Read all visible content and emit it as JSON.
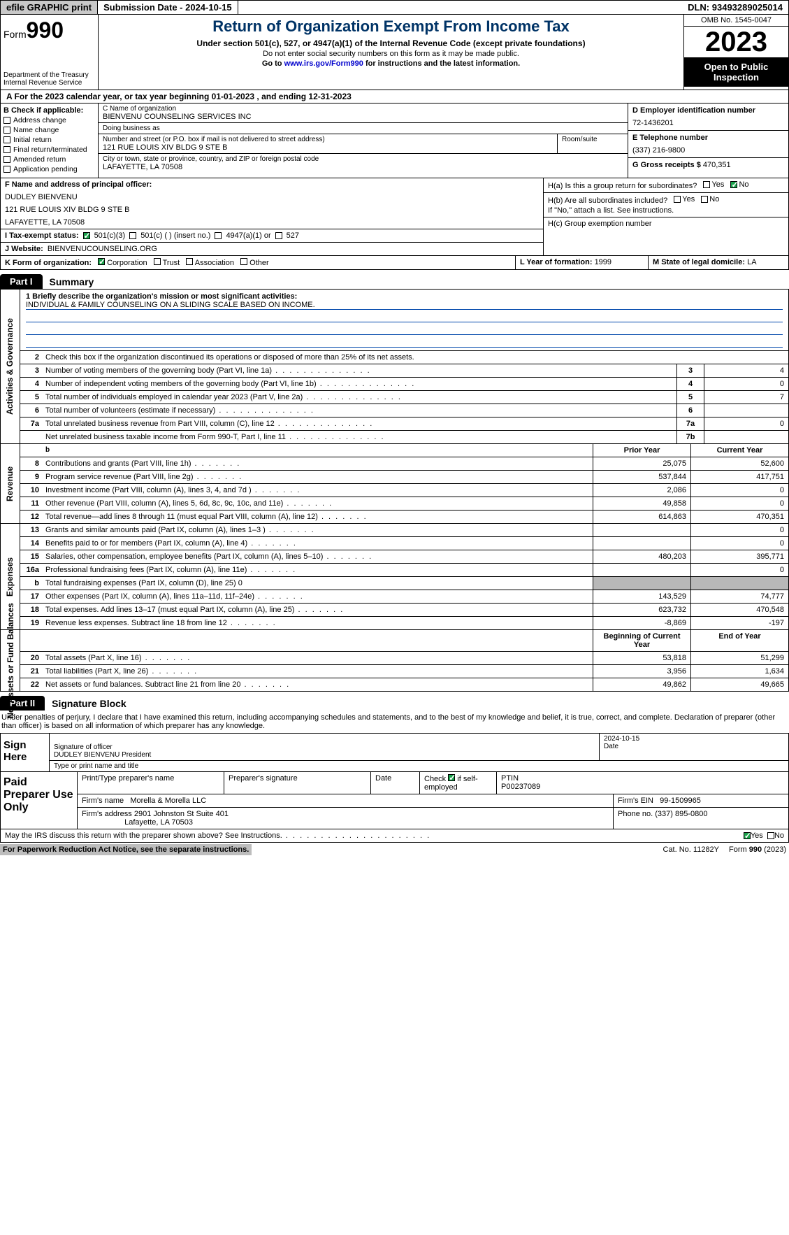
{
  "topbar": {
    "efile": "efile GRAPHIC print",
    "sub_label": "Submission Date - ",
    "sub_date": "2024-10-15",
    "dln_label": "DLN: ",
    "dln": "93493289025014"
  },
  "header": {
    "form_word": "Form",
    "form_num": "990",
    "title": "Return of Organization Exempt From Income Tax",
    "sub": "Under section 501(c), 527, or 4947(a)(1) of the Internal Revenue Code (except private foundations)",
    "ssn": "Do not enter social security numbers on this form as it may be made public.",
    "goto_pre": "Go to ",
    "goto_link": "www.irs.gov/Form990",
    "goto_post": " for instructions and the latest information.",
    "dept": "Department of the Treasury",
    "irs": "Internal Revenue Service",
    "omb": "OMB No. 1545-0047",
    "year": "2023",
    "inspection": "Open to Public Inspection"
  },
  "a_line": {
    "pre": "A For the 2023 calendar year, or tax year beginning ",
    "begin": "01-01-2023",
    "mid": "   , and ending ",
    "end": "12-31-2023"
  },
  "boxB": {
    "hdr": "B Check if applicable:",
    "items": [
      "Address change",
      "Name change",
      "Initial return",
      "Final return/terminated",
      "Amended return",
      "Application pending"
    ]
  },
  "boxC": {
    "name_lbl": "C Name of organization",
    "name": "BIENVENU COUNSELING SERVICES INC",
    "dba_lbl": "Doing business as",
    "dba": "",
    "street_lbl": "Number and street (or P.O. box if mail is not delivered to street address)",
    "street": "121 RUE LOUIS XIV BLDG 9 STE B",
    "room_lbl": "Room/suite",
    "city_lbl": "City or town, state or province, country, and ZIP or foreign postal code",
    "city": "LAFAYETTE, LA   70508"
  },
  "boxD": {
    "ein_lbl": "D Employer identification number",
    "ein": "72-1436201",
    "phone_lbl": "E Telephone number",
    "phone": "(337) 216-9800",
    "gross_lbl": "G Gross receipts $ ",
    "gross": "470,351"
  },
  "boxF": {
    "lbl": "F  Name and address of principal officer:",
    "name": "DUDLEY BIENVENU",
    "street": "121 RUE LOUIS XIV BLDG 9 STE B",
    "city": "LAFAYETTE, LA  70508"
  },
  "boxH": {
    "a_lbl": "H(a)  Is this a group return for subordinates?",
    "b_lbl": "H(b)  Are all subordinates included?",
    "b_note": "If \"No,\" attach a list. See instructions.",
    "c_lbl": "H(c)  Group exemption number"
  },
  "boxI": {
    "lbl": "I   Tax-exempt status:",
    "c3": "501(c)(3)",
    "c": "501(c) (  ) (insert no.)",
    "a1": "4947(a)(1) or",
    "s527": "527"
  },
  "boxJ": {
    "lbl": "J   Website:",
    "val": " BIENVENUCOUNSELING.ORG"
  },
  "boxK": {
    "lbl": "K Form of organization:",
    "corp": "Corporation",
    "trust": "Trust",
    "assoc": "Association",
    "other": "Other"
  },
  "boxL": {
    "lbl": "L Year of formation: ",
    "val": "1999"
  },
  "boxM": {
    "lbl": "M State of legal domicile: ",
    "val": "LA"
  },
  "part1": {
    "tab": "Part I",
    "title": "Summary"
  },
  "summary": {
    "side_ag": "Activities & Governance",
    "side_rev": "Revenue",
    "side_exp": "Expenses",
    "side_na": "Net Assets or Fund Balances",
    "q1_lbl": "1  Briefly describe the organization's mission or most significant activities:",
    "q1_val": "INDIVIDUAL & FAMILY COUNSELING ON A SLIDING SCALE BASED ON INCOME.",
    "q2": "Check this box         if the organization discontinued its operations or disposed of more than 25% of its net assets.",
    "rows_ag": [
      {
        "n": "3",
        "d": "Number of voting members of the governing body (Part VI, line 1a)",
        "ln": "3",
        "v": "4"
      },
      {
        "n": "4",
        "d": "Number of independent voting members of the governing body (Part VI, line 1b)",
        "ln": "4",
        "v": "0"
      },
      {
        "n": "5",
        "d": "Total number of individuals employed in calendar year 2023 (Part V, line 2a)",
        "ln": "5",
        "v": "7"
      },
      {
        "n": "6",
        "d": "Total number of volunteers (estimate if necessary)",
        "ln": "6",
        "v": ""
      },
      {
        "n": "7a",
        "d": "Total unrelated business revenue from Part VIII, column (C), line 12",
        "ln": "7a",
        "v": "0"
      },
      {
        "n": "",
        "d": "Net unrelated business taxable income from Form 990-T, Part I, line 11",
        "ln": "7b",
        "v": ""
      }
    ],
    "hdr_prior": "Prior Year",
    "hdr_curr": "Current Year",
    "hdr_begin": "Beginning of Current Year",
    "hdr_end": "End of Year",
    "rows_rev": [
      {
        "n": "8",
        "d": "Contributions and grants (Part VIII, line 1h)",
        "p": "25,075",
        "c": "52,600"
      },
      {
        "n": "9",
        "d": "Program service revenue (Part VIII, line 2g)",
        "p": "537,844",
        "c": "417,751"
      },
      {
        "n": "10",
        "d": "Investment income (Part VIII, column (A), lines 3, 4, and 7d )",
        "p": "2,086",
        "c": "0"
      },
      {
        "n": "11",
        "d": "Other revenue (Part VIII, column (A), lines 5, 6d, 8c, 9c, 10c, and 11e)",
        "p": "49,858",
        "c": "0"
      },
      {
        "n": "12",
        "d": "Total revenue—add lines 8 through 11 (must equal Part VIII, column (A), line 12)",
        "p": "614,863",
        "c": "470,351"
      }
    ],
    "rows_exp": [
      {
        "n": "13",
        "d": "Grants and similar amounts paid (Part IX, column (A), lines 1–3 )",
        "p": "",
        "c": "0"
      },
      {
        "n": "14",
        "d": "Benefits paid to or for members (Part IX, column (A), line 4)",
        "p": "",
        "c": "0"
      },
      {
        "n": "15",
        "d": "Salaries, other compensation, employee benefits (Part IX, column (A), lines 5–10)",
        "p": "480,203",
        "c": "395,771"
      },
      {
        "n": "16a",
        "d": "Professional fundraising fees (Part IX, column (A), line 11e)",
        "p": "",
        "c": "0"
      },
      {
        "n": "b",
        "d": "Total fundraising expenses (Part IX, column (D), line 25) 0",
        "p": "GREY",
        "c": "GREY"
      },
      {
        "n": "17",
        "d": "Other expenses (Part IX, column (A), lines 11a–11d, 11f–24e)",
        "p": "143,529",
        "c": "74,777"
      },
      {
        "n": "18",
        "d": "Total expenses. Add lines 13–17 (must equal Part IX, column (A), line 25)",
        "p": "623,732",
        "c": "470,548"
      },
      {
        "n": "19",
        "d": "Revenue less expenses. Subtract line 18 from line 12",
        "p": "-8,869",
        "c": "-197"
      }
    ],
    "rows_na": [
      {
        "n": "20",
        "d": "Total assets (Part X, line 16)",
        "p": "53,818",
        "c": "51,299"
      },
      {
        "n": "21",
        "d": "Total liabilities (Part X, line 26)",
        "p": "3,956",
        "c": "1,634"
      },
      {
        "n": "22",
        "d": "Net assets or fund balances. Subtract line 21 from line 20",
        "p": "49,862",
        "c": "49,665"
      }
    ]
  },
  "part2": {
    "tab": "Part II",
    "title": "Signature Block"
  },
  "sig": {
    "decl": "Under penalties of perjury, I declare that I have examined this return, including accompanying schedules and statements, and to the best of my knowledge and belief, it is true, correct, and complete. Declaration of preparer (other than officer) is based on all information of which preparer has any knowledge.",
    "sign_here": "Sign Here",
    "sig_officer": "Signature of officer",
    "date_lbl": "Date",
    "date": "2024-10-15",
    "officer": "DUDLEY BIENVENU President",
    "type_lbl": "Type or print name and title",
    "paid": "Paid Preparer Use Only",
    "pt_name_lbl": "Print/Type preparer's name",
    "pt_sig_lbl": "Preparer's signature",
    "self_lbl": "Check         if self-employed",
    "ptin_lbl": "PTIN",
    "ptin": "P00237089",
    "firm_name_lbl": "Firm's name",
    "firm_name": "Morella & Morella LLC",
    "firm_ein_lbl": "Firm's EIN",
    "firm_ein": "99-1509965",
    "firm_addr_lbl": "Firm's address",
    "firm_addr1": "2901 Johnston St Suite 401",
    "firm_addr2": "Lafayette, LA   70503",
    "firm_phone_lbl": "Phone no.",
    "firm_phone": "(337) 895-0800",
    "discuss": "May the IRS discuss this return with the preparer shown above? See Instructions."
  },
  "footer": {
    "paperwork": "For Paperwork Reduction Act Notice, see the separate instructions.",
    "cat": "Cat. No. 11282Y",
    "form": "Form 990 (2023)"
  },
  "labels": {
    "yes": "Yes",
    "no": "No",
    "b_blank": "b"
  }
}
